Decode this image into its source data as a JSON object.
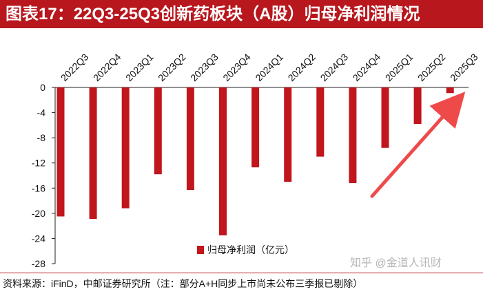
{
  "title": "图表17：22Q3-25Q3创新药板块（A股）归母净利润情况",
  "source": "资料来源：iFinD，中邮证券研究所（注：部分A+H同步上市尚未公布三季报已剔除）",
  "watermark": "知乎 @金道人讯财",
  "colors": {
    "accent": "#b8171d",
    "bar": "#c0161c",
    "arrow": "#ef4a4a"
  },
  "chart_data": {
    "type": "bar",
    "categories": [
      "2022Q3",
      "2022Q4",
      "2023Q1",
      "2023Q2",
      "2023Q3",
      "2023Q4",
      "2024Q1",
      "2024Q2",
      "2024Q3",
      "2024Q4",
      "2025Q1",
      "2025Q2",
      "2025Q3"
    ],
    "series": [
      {
        "name": "归母净利润（亿元）",
        "values": [
          -20.5,
          -20.9,
          -19.2,
          -13.8,
          -16.3,
          -23.5,
          -12.7,
          -15.0,
          -11.0,
          -15.2,
          -9.6,
          -5.8,
          -0.9
        ]
      }
    ],
    "yticks": [
      "0",
      "-4",
      "-8",
      "-12",
      "-16",
      "-20",
      "-24",
      "-28"
    ],
    "ylim": [
      -28,
      0
    ],
    "xlabel": "",
    "ylabel": "",
    "legend_position": "bottom-center",
    "grid": false,
    "annotation": "arrow-rising-to-2025Q3"
  }
}
